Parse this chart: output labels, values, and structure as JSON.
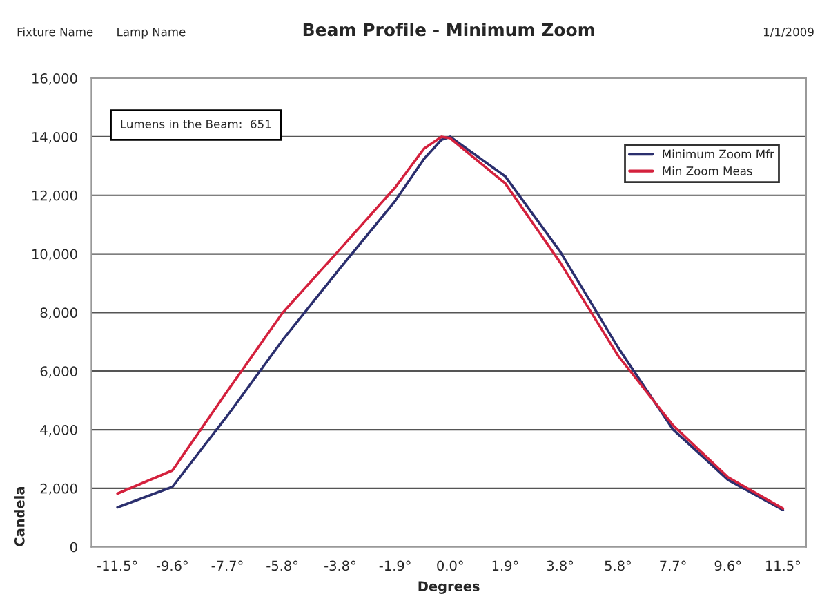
{
  "chart_data": {
    "type": "line",
    "title": "Beam Profile - Minimum Zoom",
    "xlabel": "Degrees",
    "ylabel": "Candela",
    "x": [
      -11.5,
      -9.6,
      -7.7,
      -5.8,
      -3.8,
      -1.9,
      -0.9,
      -0.3,
      0.0,
      1.9,
      3.8,
      5.8,
      7.7,
      9.6,
      11.5
    ],
    "series": [
      {
        "name": "Minimum Zoom Mfr",
        "color": "#2b2f6e",
        "values": [
          1350,
          2050,
          4480,
          7050,
          9520,
          11810,
          13250,
          13900,
          14000,
          12650,
          10080,
          6810,
          4010,
          2290,
          1260
        ]
      },
      {
        "name": "Min Zoom Meas",
        "color": "#d4213d",
        "values": [
          1820,
          2610,
          5320,
          7980,
          10170,
          12270,
          13600,
          14000,
          13950,
          12410,
          9710,
          6530,
          4150,
          2380,
          1310
        ]
      }
    ],
    "xlim": [
      -12.4,
      12.3
    ],
    "xticks": [
      {
        "value": -11.5,
        "label": "-11.5°"
      },
      {
        "value": -9.6,
        "label": "-9.6°"
      },
      {
        "value": -7.7,
        "label": "-7.7°"
      },
      {
        "value": -5.8,
        "label": "-5.8°"
      },
      {
        "value": -3.8,
        "label": "-3.8°"
      },
      {
        "value": -1.9,
        "label": "-1.9°"
      },
      {
        "value": 0.0,
        "label": "0.0°"
      },
      {
        "value": 1.9,
        "label": "1.9°"
      },
      {
        "value": 3.8,
        "label": "3.8°"
      },
      {
        "value": 5.8,
        "label": "5.8°"
      },
      {
        "value": 7.7,
        "label": "7.7°"
      },
      {
        "value": 9.6,
        "label": "9.6°"
      },
      {
        "value": 11.5,
        "label": "11.5°"
      }
    ],
    "ylim": [
      0,
      16000
    ],
    "yticks": [
      {
        "value": 0,
        "label": "0"
      },
      {
        "value": 2000,
        "label": "2,000"
      },
      {
        "value": 4000,
        "label": "4,000"
      },
      {
        "value": 6000,
        "label": "6,000"
      },
      {
        "value": 8000,
        "label": "8,000"
      },
      {
        "value": 10000,
        "label": "10,000"
      },
      {
        "value": 12000,
        "label": "12,000"
      },
      {
        "value": 14000,
        "label": "14,000"
      },
      {
        "value": 16000,
        "label": "16,000"
      }
    ],
    "grid": "y",
    "legend": "top right",
    "marker": "none",
    "line_style": "solid",
    "annotations": [
      "Fixture Name",
      "Lamp Name",
      "1/1/2009",
      "Lumens in the Beam:  651"
    ]
  }
}
